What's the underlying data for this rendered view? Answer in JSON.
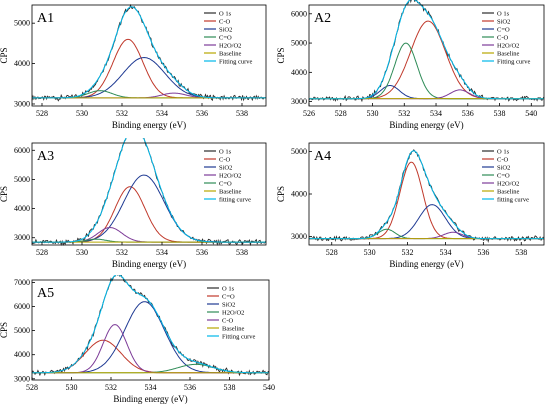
{
  "chart_data": [
    {
      "type": "line",
      "panel_label": "A1",
      "xlabel": "Binding energy (eV)",
      "ylabel": "CPS",
      "xlim": [
        527.5,
        539.2
      ],
      "ylim": [
        2950,
        5450
      ],
      "xticks": [
        "528",
        "530",
        "532",
        "534",
        "536",
        "538"
      ],
      "xtick_values": [
        528,
        530,
        532,
        534,
        536,
        538
      ],
      "yticks": [
        "3000",
        "4000",
        "5000"
      ],
      "ytick_values": [
        3000,
        4000,
        5000
      ],
      "baseline": 3150,
      "legend": [
        "O 1s",
        "C-O",
        "SiO2",
        "C=O",
        "H2O/O2",
        "Baseline",
        "Fitting curve"
      ],
      "series": [
        {
          "name": "C-O",
          "center": 532.3,
          "height": 1450,
          "sigma": 0.75,
          "color": "#c0392b"
        },
        {
          "name": "SiO2",
          "center": 533.1,
          "height": 1000,
          "sigma": 1.05,
          "color": "#1f3a93"
        },
        {
          "name": "C=O",
          "center": 530.9,
          "height": 180,
          "sigma": 0.6,
          "color": "#2e8b57"
        },
        {
          "name": "H2O/O2",
          "center": 534.6,
          "height": 120,
          "sigma": 0.6,
          "color": "#7d3c98"
        }
      ]
    },
    {
      "type": "line",
      "panel_label": "A2",
      "xlabel": "Binding energy (eV)",
      "ylabel": "CPS",
      "xlim": [
        526.0,
        540.8
      ],
      "ylim": [
        2850,
        6300
      ],
      "xticks": [
        "526",
        "528",
        "530",
        "532",
        "534",
        "536",
        "538",
        "540"
      ],
      "xtick_values": [
        526,
        528,
        530,
        532,
        534,
        536,
        538,
        540
      ],
      "yticks": [
        "3000",
        "4000",
        "5000",
        "6000"
      ],
      "ytick_values": [
        3000,
        4000,
        5000,
        6000
      ],
      "baseline": 3100,
      "legend": [
        "O 1s",
        "SiO2",
        "C=O",
        "C-O",
        "H2O/O2",
        "Baseline",
        "Fitting curve"
      ],
      "series": [
        {
          "name": "SiO2",
          "center": 533.5,
          "height": 2650,
          "sigma": 1.1,
          "color": "#c0392b"
        },
        {
          "name": "C=O",
          "center": 531.1,
          "height": 450,
          "sigma": 0.6,
          "color": "#1f3a93"
        },
        {
          "name": "C-O",
          "center": 532.1,
          "height": 1900,
          "sigma": 0.7,
          "color": "#2e8b57"
        },
        {
          "name": "H2O/O2",
          "center": 535.5,
          "height": 300,
          "sigma": 0.6,
          "color": "#7d3c98"
        }
      ]
    },
    {
      "type": "line",
      "panel_label": "A3",
      "xlabel": "Binding energy (eV)",
      "ylabel": "CPS",
      "xlim": [
        527.5,
        539.2
      ],
      "ylim": [
        2750,
        6250
      ],
      "xticks": [
        "528",
        "530",
        "532",
        "534",
        "536",
        "538"
      ],
      "xtick_values": [
        528,
        530,
        532,
        534,
        536,
        538
      ],
      "yticks": [
        "3000",
        "4000",
        "5000",
        "6000"
      ],
      "ytick_values": [
        3000,
        4000,
        5000,
        6000
      ],
      "baseline": 2850,
      "legend": [
        "O 1s",
        "C-O",
        "SiO2",
        "H2O/O2",
        "C=O",
        "Baseline",
        "fitting curve"
      ],
      "series": [
        {
          "name": "C-O",
          "center": 532.4,
          "height": 1900,
          "sigma": 0.75,
          "color": "#c0392b"
        },
        {
          "name": "SiO2",
          "center": 533.1,
          "height": 2300,
          "sigma": 1.0,
          "color": "#1f3a93"
        },
        {
          "name": "H2O/O2",
          "center": 531.4,
          "height": 500,
          "sigma": 0.6,
          "color": "#7d3c98"
        },
        {
          "name": "C=O",
          "center": 530.7,
          "height": 100,
          "sigma": 0.5,
          "color": "#2e8b57"
        }
      ]
    },
    {
      "type": "line",
      "panel_label": "A4",
      "xlabel": "Binding energy (eV)",
      "ylabel": "CPS",
      "xlim": [
        526.8,
        539.2
      ],
      "ylim": [
        2800,
        5200
      ],
      "xticks": [
        "528",
        "530",
        "532",
        "534",
        "536",
        "538"
      ],
      "xtick_values": [
        528,
        530,
        532,
        534,
        536,
        538
      ],
      "yticks": [
        "3000",
        "4000",
        "5000"
      ],
      "ytick_values": [
        3000,
        4000,
        5000
      ],
      "baseline": 2950,
      "legend": [
        "O 1s",
        "C-O",
        "SiO2",
        "C=O",
        "H2O/O2",
        "Baseline",
        "fitting curve"
      ],
      "series": [
        {
          "name": "C-O",
          "center": 532.2,
          "height": 1800,
          "sigma": 0.6,
          "color": "#c0392b"
        },
        {
          "name": "SiO2",
          "center": 533.3,
          "height": 800,
          "sigma": 0.7,
          "color": "#1f3a93"
        },
        {
          "name": "C=O",
          "center": 530.9,
          "height": 220,
          "sigma": 0.45,
          "color": "#2e8b57"
        },
        {
          "name": "H2O/O2",
          "center": 534.4,
          "height": 150,
          "sigma": 0.5,
          "color": "#7d3c98"
        }
      ]
    },
    {
      "type": "line",
      "panel_label": "A5",
      "xlabel": "Binding energy (eV)",
      "ylabel": "CPS",
      "xlim": [
        528.0,
        540.0
      ],
      "ylim": [
        2950,
        7100
      ],
      "xticks": [
        "528",
        "530",
        "532",
        "534",
        "536",
        "538",
        "540"
      ],
      "xtick_values": [
        528,
        530,
        532,
        534,
        536,
        538,
        540
      ],
      "yticks": [
        "3000",
        "4000",
        "5000",
        "6000",
        "7000"
      ],
      "ytick_values": [
        3000,
        4000,
        5000,
        6000,
        7000
      ],
      "baseline": 3250,
      "legend": [
        "O 1s",
        "C=O",
        "SiO2",
        "H2O/O2",
        "C-O",
        "Baseline",
        "Fitting curve"
      ],
      "series": [
        {
          "name": "C=O",
          "center": 531.6,
          "height": 1350,
          "sigma": 0.9,
          "color": "#c0392b"
        },
        {
          "name": "SiO2",
          "center": 533.7,
          "height": 2950,
          "sigma": 1.0,
          "color": "#1f3a93"
        },
        {
          "name": "H2O/O2",
          "center": 536.3,
          "height": 350,
          "sigma": 0.9,
          "color": "#2e8b57"
        },
        {
          "name": "C-O",
          "center": 532.2,
          "height": 2000,
          "sigma": 0.6,
          "color": "#7d3c98"
        }
      ]
    }
  ],
  "colors": {
    "O 1s": "#2b2b2b",
    "Baseline": "#b8a600",
    "Fitting curve": "#00b7e8"
  }
}
